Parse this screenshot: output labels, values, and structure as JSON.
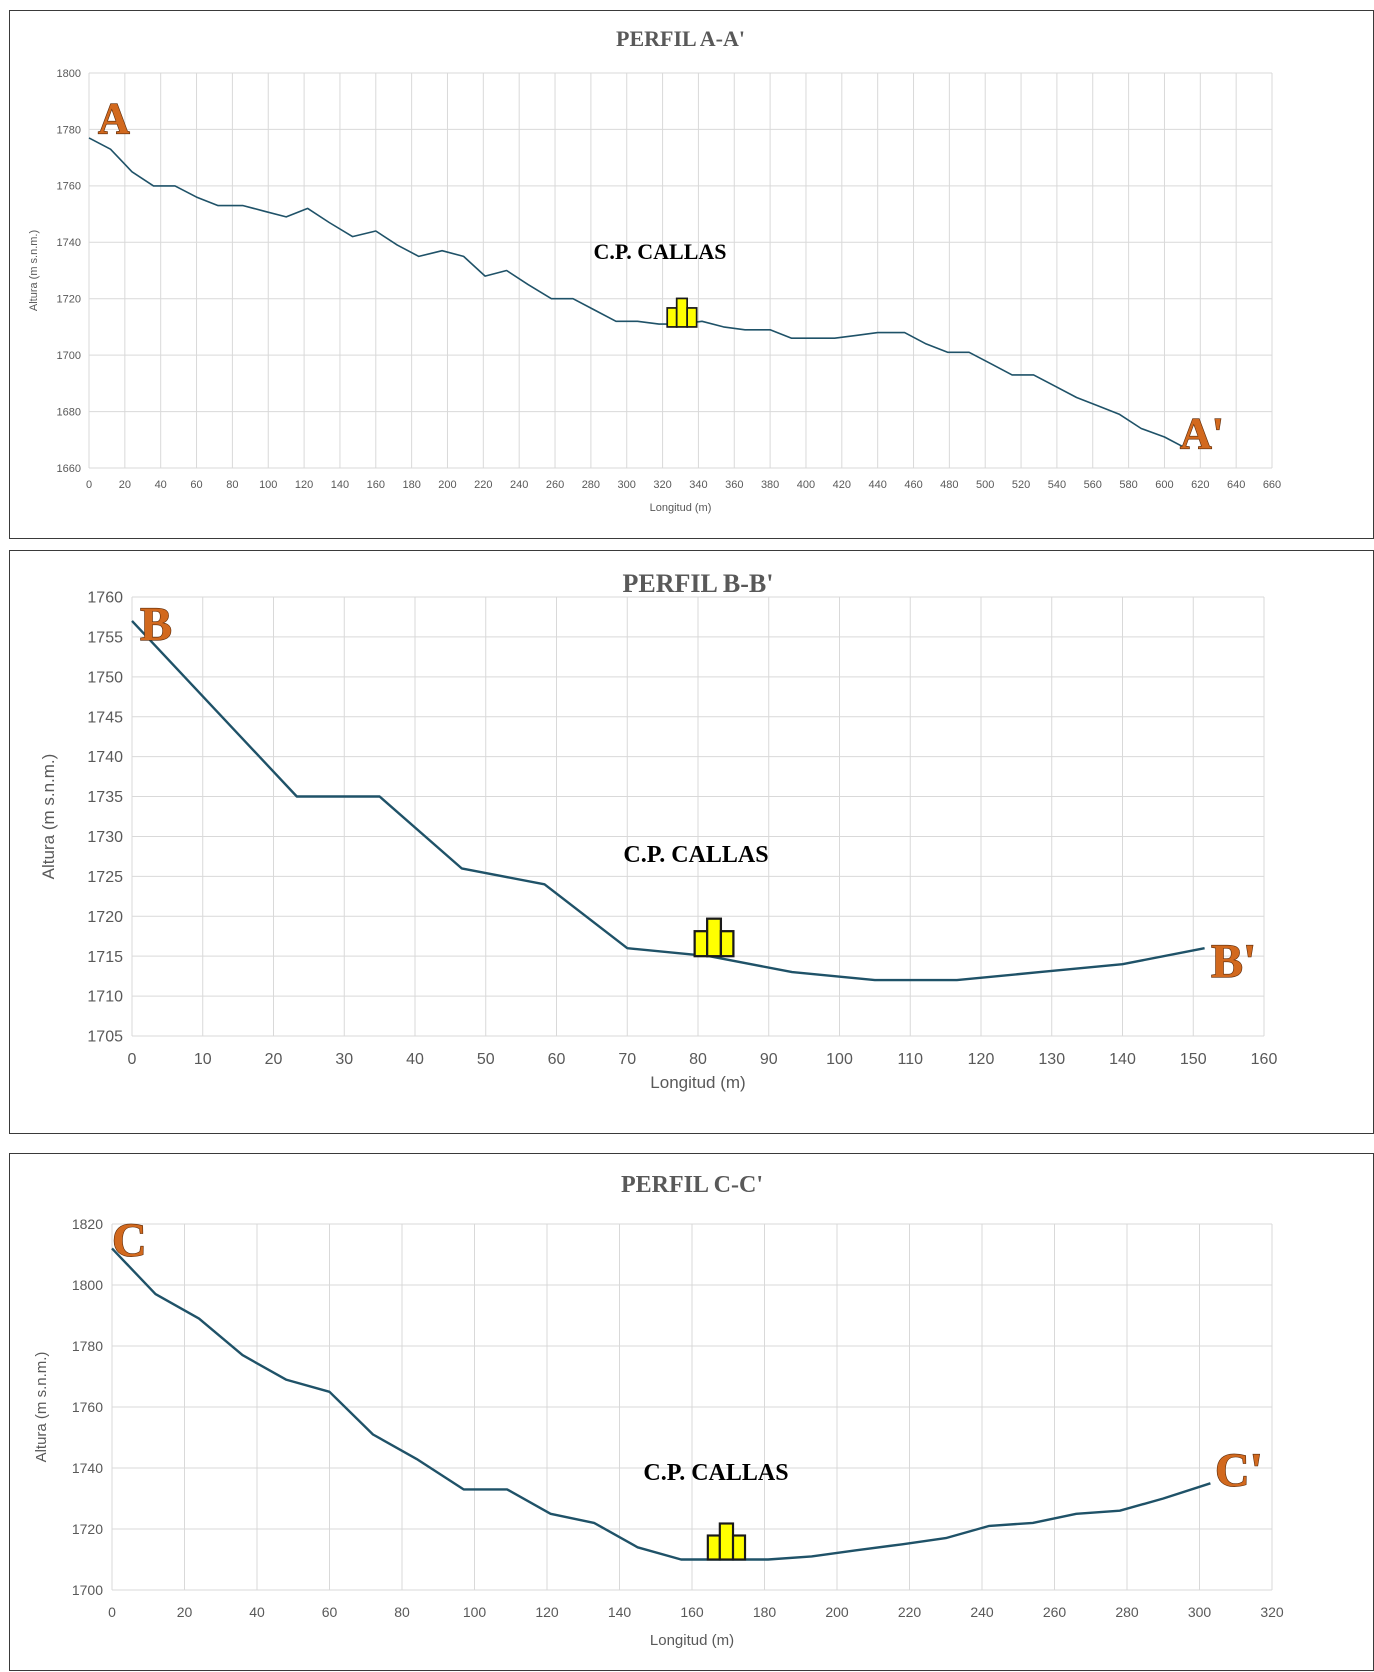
{
  "colors": {
    "line": "#1f5268",
    "grid": "#d9d9d9",
    "label_fill": "#d2691e",
    "marker": "#ffff00"
  },
  "icons": {
    "settlement_marker": "building-cluster-icon"
  },
  "chart_data": [
    {
      "type": "line",
      "title": "PERFIL A-A'",
      "xlabel": "Longitud (m)",
      "ylabel": "Altura (m s.n.m.)",
      "xlim": [
        0,
        660
      ],
      "ylim": [
        1660,
        1800
      ],
      "xticks": [
        "0",
        "20",
        "40",
        "60",
        "80",
        "100",
        "120",
        "140",
        "160",
        "180",
        "200",
        "220",
        "240",
        "260",
        "280",
        "300",
        "320",
        "340",
        "360",
        "380",
        "400",
        "420",
        "440",
        "460",
        "480",
        "500",
        "520",
        "540",
        "560",
        "580",
        "600",
        "620",
        "640",
        "660"
      ],
      "yticks": [
        "1660",
        "1680",
        "1700",
        "1720",
        "1740",
        "1760",
        "1780",
        "1800"
      ],
      "grid": true,
      "start_label": "A",
      "end_label": "A'",
      "place_label": "C.P. CALLAS",
      "marker": {
        "x": 330,
        "y": 1710
      },
      "x": [
        0,
        12,
        24,
        36,
        48,
        60,
        72,
        86,
        98,
        110,
        122,
        134,
        147,
        160,
        172,
        184,
        197,
        209,
        221,
        233,
        245,
        258,
        270,
        282,
        294,
        306,
        318,
        330,
        342,
        354,
        366,
        380,
        392,
        404,
        416,
        428,
        440,
        455,
        467,
        479,
        491,
        503,
        515,
        527,
        539,
        551,
        563,
        575,
        587,
        600,
        612
      ],
      "y": [
        1777,
        1773,
        1765,
        1760,
        1760,
        1756,
        1753,
        1753,
        1751,
        1749,
        1752,
        1747,
        1742,
        1744,
        1739,
        1735,
        1737,
        1735,
        1728,
        1730,
        1725,
        1720,
        1720,
        1716,
        1712,
        1712,
        1711,
        1711,
        1712,
        1710,
        1709,
        1709,
        1706,
        1706,
        1706,
        1707,
        1708,
        1708,
        1704,
        1701,
        1701,
        1697,
        1693,
        1693,
        1689,
        1685,
        1682,
        1679,
        1674,
        1671,
        1667
      ]
    },
    {
      "type": "line",
      "title": "PERFIL B-B'",
      "xlabel": "Longitud (m)",
      "ylabel": "Altura (m s.n.m.)",
      "xlim": [
        0,
        160
      ],
      "ylim": [
        1705,
        1760
      ],
      "xticks": [
        "0",
        "10",
        "20",
        "30",
        "40",
        "50",
        "60",
        "70",
        "80",
        "90",
        "100",
        "110",
        "120",
        "130",
        "140",
        "150",
        "160"
      ],
      "yticks": [
        "1705",
        "1710",
        "1715",
        "1720",
        "1725",
        "1730",
        "1735",
        "1740",
        "1745",
        "1750",
        "1755",
        "1760"
      ],
      "grid": true,
      "start_label": "B",
      "end_label": "B'",
      "place_label": "C.P. CALLAS",
      "marker": {
        "x": 82,
        "y": 1715
      },
      "x": [
        0,
        23.3,
        35,
        46.6,
        58.3,
        70,
        81.6,
        93.3,
        105,
        116.6,
        128.3,
        140,
        151.6
      ],
      "y": [
        1757,
        1735,
        1735,
        1726,
        1724,
        1716,
        1715,
        1713,
        1712,
        1712,
        1713,
        1714,
        1716
      ]
    },
    {
      "type": "line",
      "title": "PERFIL C-C'",
      "xlabel": "Longitud (m)",
      "ylabel": "Altura (m s.n.m.)",
      "xlim": [
        0,
        320
      ],
      "ylim": [
        1700,
        1820
      ],
      "xticks": [
        "0",
        "20",
        "40",
        "60",
        "80",
        "100",
        "120",
        "140",
        "160",
        "180",
        "200",
        "220",
        "240",
        "260",
        "280",
        "300",
        "320"
      ],
      "yticks": [
        "1700",
        "1720",
        "1740",
        "1760",
        "1780",
        "1800",
        "1820"
      ],
      "grid": true,
      "start_label": "C",
      "end_label": "C'",
      "place_label": "C.P. CALLAS",
      "marker": {
        "x": 169,
        "y": 1710
      },
      "x": [
        0,
        12,
        24,
        36,
        48,
        60,
        72,
        84,
        97,
        109,
        121,
        133,
        145,
        157,
        169,
        181,
        193,
        205,
        218,
        230,
        242,
        254,
        266,
        278,
        290,
        303
      ],
      "y": [
        1812,
        1797,
        1789,
        1777,
        1769,
        1765,
        1751,
        1743,
        1733,
        1733,
        1725,
        1722,
        1714,
        1710,
        1710,
        1710,
        1711,
        1713,
        1715,
        1717,
        1721,
        1722,
        1725,
        1726,
        1730,
        1735
      ]
    }
  ]
}
